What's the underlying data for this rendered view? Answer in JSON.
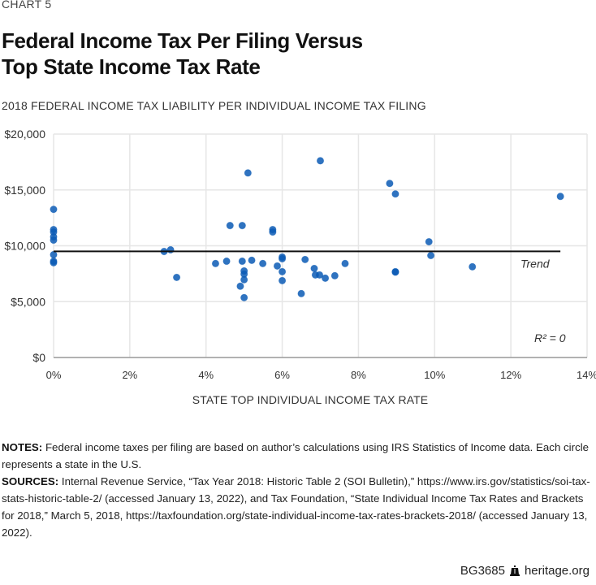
{
  "header": {
    "chart_number": "CHART 5",
    "title_line1": "Federal Income Tax Per Filing Versus",
    "title_line2": "Top State Income Tax Rate",
    "subtitle": "2018 FEDERAL INCOME TAX LIABILITY PER INDIVIDUAL INCOME TAX FILING"
  },
  "chart_data": {
    "type": "scatter",
    "title": "Federal Income Tax Per Filing Versus Top State Income Tax Rate",
    "ylabel": "2018 FEDERAL INCOME TAX LIABILITY PER INDIVIDUAL INCOME TAX FILING",
    "xlabel": "STATE TOP INDIVIDUAL INCOME TAX RATE",
    "xlim": [
      0,
      14
    ],
    "ylim": [
      0,
      20000
    ],
    "x_ticks": [
      0,
      2,
      4,
      6,
      8,
      10,
      12,
      14
    ],
    "x_tick_labels": [
      "0%",
      "2%",
      "4%",
      "6%",
      "8%",
      "10%",
      "12%",
      "14%"
    ],
    "y_ticks": [
      0,
      5000,
      10000,
      15000,
      20000
    ],
    "y_tick_labels": [
      "$0",
      "$5,000",
      "$10,000",
      "$15,000",
      "$20,000"
    ],
    "grid": true,
    "point_color": "#0a5bb5",
    "trend": {
      "label": "Trend",
      "value": 9500,
      "x_range": [
        0,
        13.3
      ]
    },
    "annotation": "R² = 0",
    "points": [
      {
        "x": 0,
        "y": 13260
      },
      {
        "x": 0,
        "y": 11450
      },
      {
        "x": 0,
        "y": 11230
      },
      {
        "x": 0,
        "y": 10800
      },
      {
        "x": 0,
        "y": 10510
      },
      {
        "x": 0,
        "y": 9200
      },
      {
        "x": 0,
        "y": 8620
      },
      {
        "x": 0,
        "y": 8480
      },
      {
        "x": 2.9,
        "y": 9490
      },
      {
        "x": 3.07,
        "y": 9640
      },
      {
        "x": 3.23,
        "y": 7170
      },
      {
        "x": 4.25,
        "y": 8410
      },
      {
        "x": 4.54,
        "y": 8620
      },
      {
        "x": 4.63,
        "y": 11810
      },
      {
        "x": 4.95,
        "y": 11810
      },
      {
        "x": 4.95,
        "y": 8620
      },
      {
        "x": 5.0,
        "y": 7750
      },
      {
        "x": 5.0,
        "y": 7460
      },
      {
        "x": 5.0,
        "y": 6960
      },
      {
        "x": 4.9,
        "y": 6380
      },
      {
        "x": 5.0,
        "y": 5360
      },
      {
        "x": 5.1,
        "y": 16520
      },
      {
        "x": 5.2,
        "y": 8700
      },
      {
        "x": 5.49,
        "y": 8410
      },
      {
        "x": 5.75,
        "y": 11450
      },
      {
        "x": 5.75,
        "y": 11230
      },
      {
        "x": 5.87,
        "y": 8190
      },
      {
        "x": 6.0,
        "y": 8990
      },
      {
        "x": 6.0,
        "y": 8840
      },
      {
        "x": 6.0,
        "y": 7680
      },
      {
        "x": 6.0,
        "y": 6880
      },
      {
        "x": 6.5,
        "y": 5720
      },
      {
        "x": 6.6,
        "y": 8770
      },
      {
        "x": 6.84,
        "y": 7970
      },
      {
        "x": 6.87,
        "y": 7390
      },
      {
        "x": 6.98,
        "y": 7390
      },
      {
        "x": 7.0,
        "y": 17610
      },
      {
        "x": 7.13,
        "y": 7100
      },
      {
        "x": 7.38,
        "y": 7320
      },
      {
        "x": 7.65,
        "y": 8410
      },
      {
        "x": 8.82,
        "y": 15580
      },
      {
        "x": 8.97,
        "y": 14640
      },
      {
        "x": 8.97,
        "y": 7680
      },
      {
        "x": 8.97,
        "y": 7640
      },
      {
        "x": 9.85,
        "y": 10360
      },
      {
        "x": 9.9,
        "y": 9130
      },
      {
        "x": 10.99,
        "y": 8120
      },
      {
        "x": 13.3,
        "y": 14420
      }
    ]
  },
  "notes": {
    "notes_label": "NOTES:",
    "notes_text": "Federal income taxes per filing are based on author’s calculations using IRS Statistics of Income data. Each circle represents a state in the U.S.",
    "sources_label": "SOURCES:",
    "sources_text": "Internal Revenue Service, “Tax Year 2018: Historic Table 2 (SOI Bulletin),” https://www.irs.gov/statistics/soi-tax-stats-historic-table-2/ (accessed January 13, 2022), and Tax Foundation, “State Individual Income Tax Rates and Brackets for 2018,” March 5, 2018, https://taxfoundation.org/state-individual-income-tax-rates-brackets-2018/ (accessed January 13, 2022)."
  },
  "footer": {
    "report_id": "BG3685",
    "logo_icon": "liberty-bell-icon",
    "site": "heritage.org"
  }
}
